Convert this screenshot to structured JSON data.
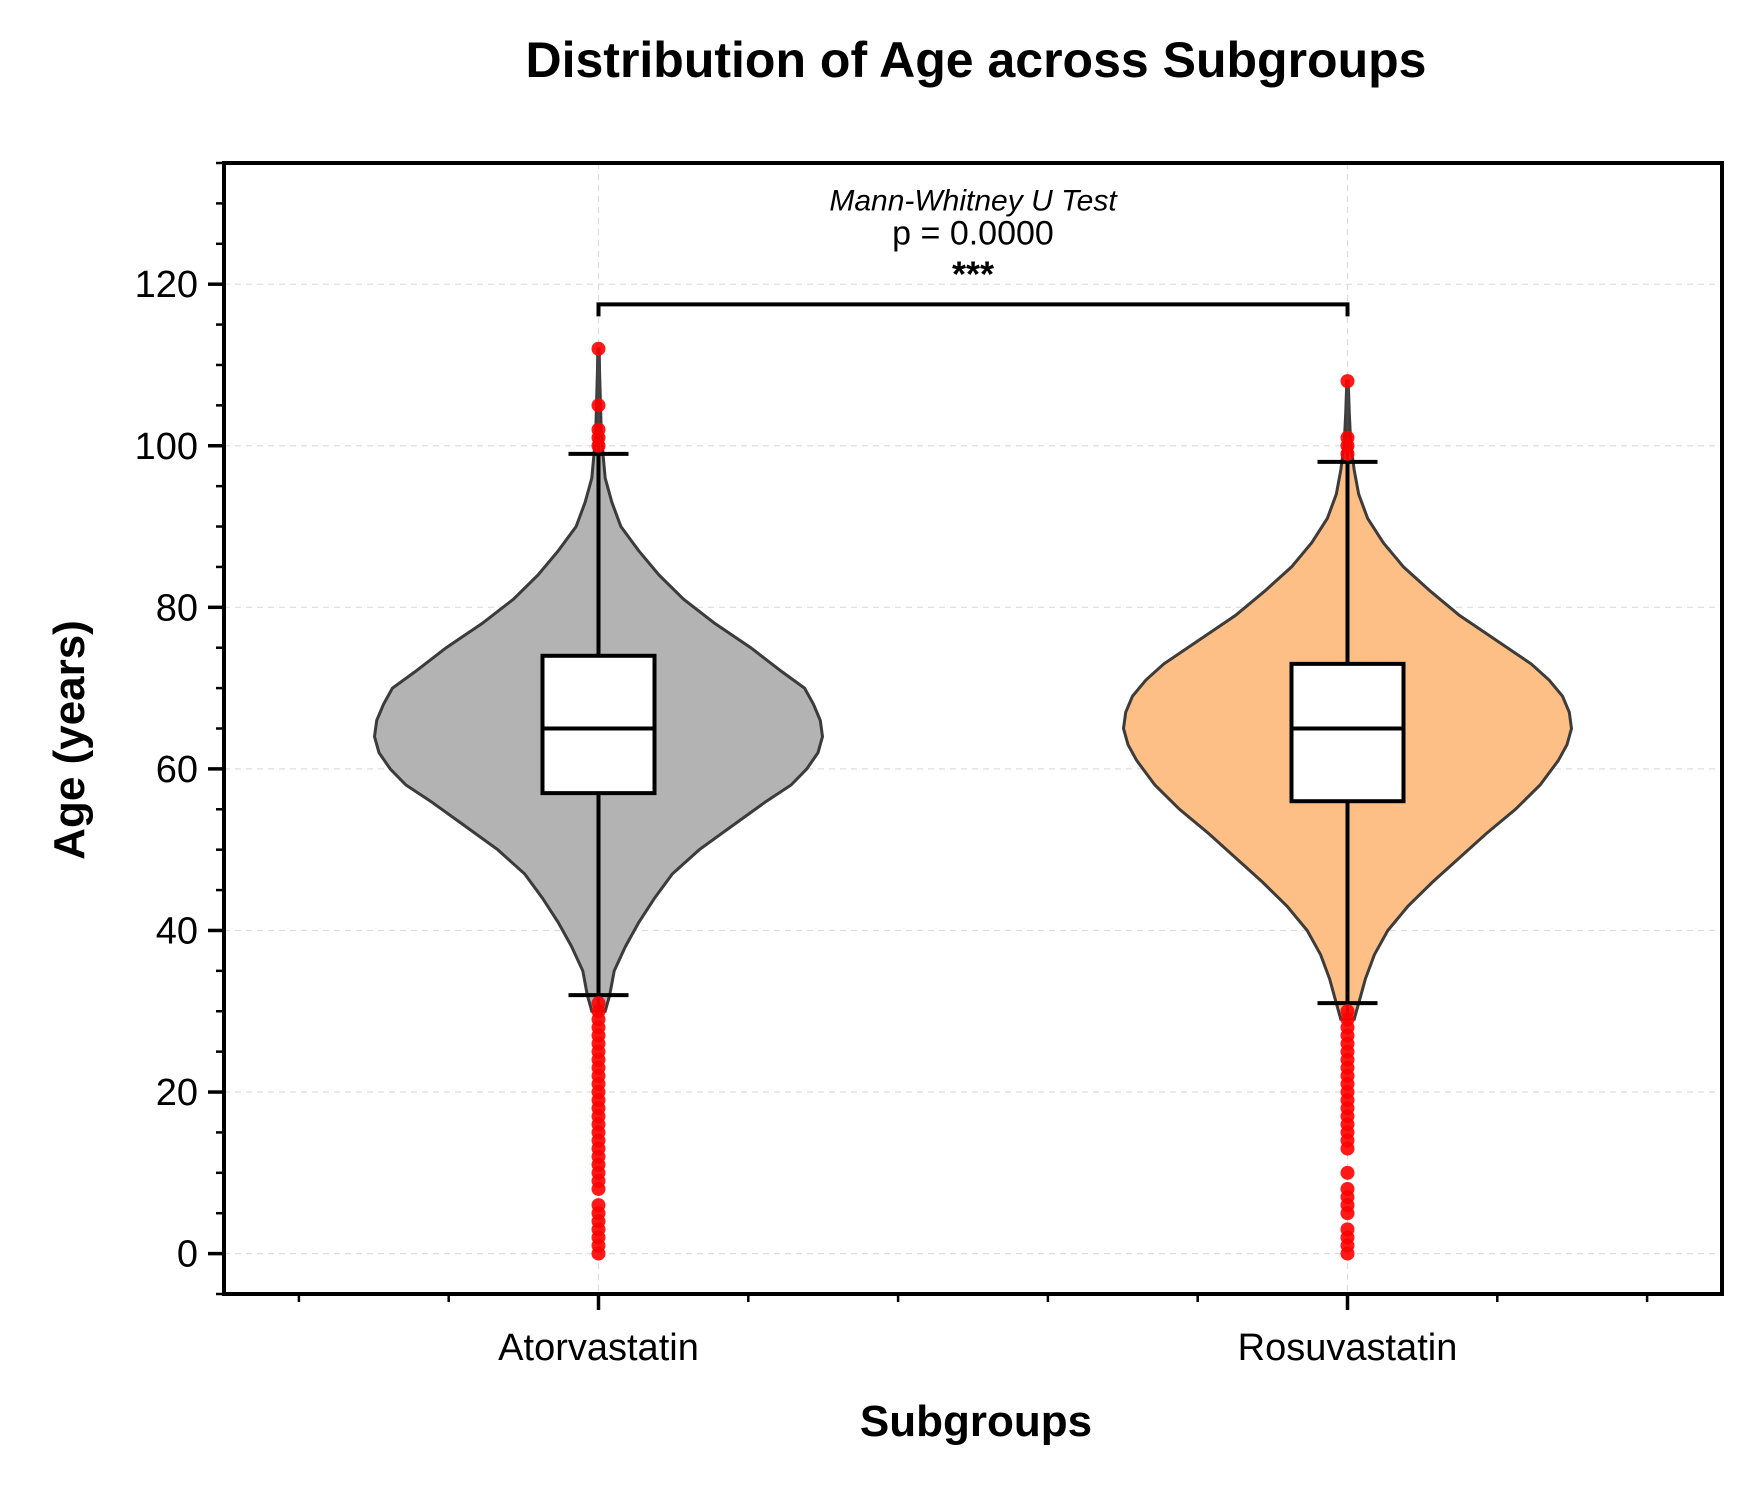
{
  "chart_data": {
    "type": "violin",
    "title": "Distribution of Age across Subgroups",
    "xlabel": "Subgroups",
    "ylabel": "Age (years)",
    "categories": [
      "Atorvastatin",
      "Rosuvastatin"
    ],
    "ylim": [
      -5,
      135
    ],
    "yticks": [
      0,
      20,
      40,
      60,
      80,
      100,
      120
    ],
    "y_minor_step": 5,
    "grid": true,
    "colors": {
      "Atorvastatin": "#b3b3b3",
      "Rosuvastatin": "#fdbf86",
      "outlier": "#ff0000",
      "box_fill": "#ffffff"
    },
    "groups": [
      {
        "name": "Atorvastatin",
        "violin_range": [
          30,
          112
        ],
        "box": {
          "whislo": 32,
          "q1": 57,
          "median": 65,
          "q3": 74,
          "whishi": 99
        },
        "density": [
          [
            30,
            0.03
          ],
          [
            32,
            0.05
          ],
          [
            35,
            0.07
          ],
          [
            38,
            0.12
          ],
          [
            41,
            0.18
          ],
          [
            44,
            0.25
          ],
          [
            47,
            0.33
          ],
          [
            50,
            0.45
          ],
          [
            53,
            0.6
          ],
          [
            56,
            0.75
          ],
          [
            58,
            0.86
          ],
          [
            60,
            0.93
          ],
          [
            62,
            0.98
          ],
          [
            64,
            1.0
          ],
          [
            66,
            0.99
          ],
          [
            68,
            0.96
          ],
          [
            70,
            0.92
          ],
          [
            72,
            0.82
          ],
          [
            75,
            0.68
          ],
          [
            78,
            0.52
          ],
          [
            81,
            0.38
          ],
          [
            84,
            0.27
          ],
          [
            87,
            0.18
          ],
          [
            90,
            0.1
          ],
          [
            93,
            0.06
          ],
          [
            96,
            0.03
          ],
          [
            99,
            0.02
          ],
          [
            102,
            0.012
          ],
          [
            106,
            0.008
          ],
          [
            109,
            0.005
          ],
          [
            112,
            0.003
          ]
        ],
        "outliers": [
          0,
          1,
          2,
          3,
          4,
          5,
          6,
          8,
          9,
          10,
          11,
          12,
          13,
          14,
          15,
          16,
          17,
          18,
          19,
          20,
          21,
          22,
          23,
          24,
          25,
          26,
          27,
          28,
          29,
          30,
          31,
          100,
          101,
          102,
          105,
          112
        ]
      },
      {
        "name": "Rosuvastatin",
        "violin_range": [
          29,
          108
        ],
        "box": {
          "whislo": 31,
          "q1": 56,
          "median": 65,
          "q3": 73,
          "whishi": 98
        },
        "density": [
          [
            29,
            0.03
          ],
          [
            31,
            0.05
          ],
          [
            34,
            0.08
          ],
          [
            37,
            0.12
          ],
          [
            40,
            0.18
          ],
          [
            43,
            0.27
          ],
          [
            46,
            0.38
          ],
          [
            49,
            0.5
          ],
          [
            52,
            0.62
          ],
          [
            55,
            0.75
          ],
          [
            58,
            0.86
          ],
          [
            61,
            0.94
          ],
          [
            63,
            0.98
          ],
          [
            65,
            1.0
          ],
          [
            67,
            0.99
          ],
          [
            69,
            0.96
          ],
          [
            71,
            0.9
          ],
          [
            73,
            0.82
          ],
          [
            76,
            0.66
          ],
          [
            79,
            0.5
          ],
          [
            82,
            0.37
          ],
          [
            85,
            0.25
          ],
          [
            88,
            0.16
          ],
          [
            91,
            0.09
          ],
          [
            94,
            0.05
          ],
          [
            97,
            0.03
          ],
          [
            100,
            0.015
          ],
          [
            104,
            0.008
          ],
          [
            108,
            0.003
          ]
        ],
        "outliers": [
          0,
          1,
          2,
          3,
          5,
          6,
          7,
          8,
          10,
          13,
          14,
          15,
          16,
          17,
          18,
          19,
          20,
          21,
          22,
          23,
          24,
          25,
          26,
          27,
          28,
          29,
          30,
          99,
          100,
          101,
          108
        ]
      }
    ],
    "annotation": {
      "test": "Mann-Whitney U Test",
      "p_text": "p = 0.0000",
      "stars": "***",
      "bracket_y": 117.5
    }
  }
}
